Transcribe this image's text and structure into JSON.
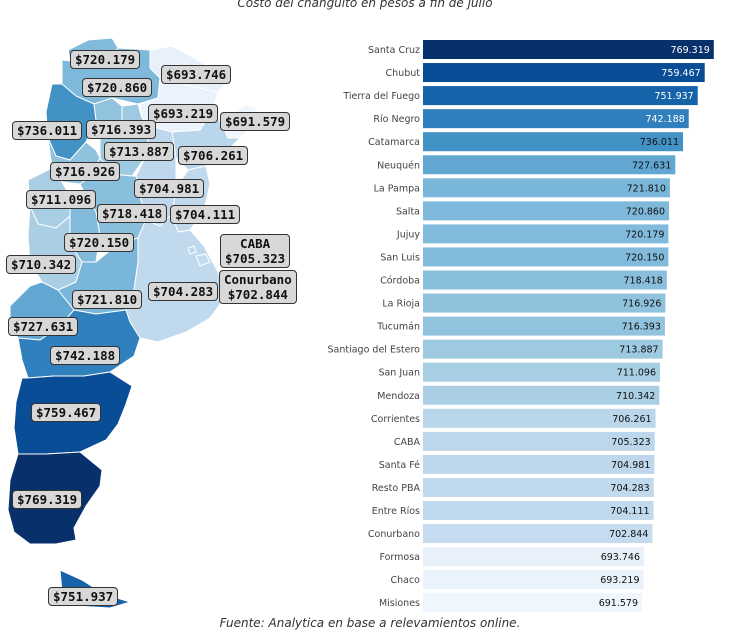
{
  "chart_data": [
    {
      "type": "map",
      "region_labels": [
        {
          "region": "Jujuy",
          "label": "$720.179"
        },
        {
          "region": "Formosa",
          "label": "$693.746"
        },
        {
          "region": "Salta",
          "label": "$720.860"
        },
        {
          "region": "Chaco",
          "label": "$693.219"
        },
        {
          "region": "Catamarca",
          "label": "$736.011"
        },
        {
          "region": "Tucumán",
          "label": "$716.393"
        },
        {
          "region": "Misiones",
          "label": "$691.579"
        },
        {
          "region": "Santiago del Estero",
          "label": "$713.887"
        },
        {
          "region": "Corrientes",
          "label": "$706.261"
        },
        {
          "region": "La Rioja",
          "label": "$716.926"
        },
        {
          "region": "Santa Fé",
          "label": "$704.981"
        },
        {
          "region": "San Juan",
          "label": "$711.096"
        },
        {
          "region": "Córdoba",
          "label": "$718.418"
        },
        {
          "region": "Entre Ríos",
          "label": "$704.111"
        },
        {
          "region": "CABA",
          "label": "CABA\n$705.323"
        },
        {
          "region": "San Luis",
          "label": "$720.150"
        },
        {
          "region": "Mendoza",
          "label": "$710.342"
        },
        {
          "region": "Conurbano",
          "label": "Conurbano\n$702.844"
        },
        {
          "region": "La Pampa",
          "label": "$721.810"
        },
        {
          "region": "Resto PBA",
          "label": "$704.283"
        },
        {
          "region": "Neuquén",
          "label": "$727.631"
        },
        {
          "region": "Río Negro",
          "label": "$742.188"
        },
        {
          "region": "Chubut",
          "label": "$759.467"
        },
        {
          "region": "Santa Cruz",
          "label": "$769.319"
        },
        {
          "region": "Tierra del Fuego",
          "label": "$751.937"
        }
      ]
    },
    {
      "type": "bar",
      "orientation": "horizontal",
      "title": "Costo del changuito en pesos a fin de julio",
      "source": "Fuente: Analytica en base a relevamientos online.",
      "categories": [
        "Santa Cruz",
        "Chubut",
        "Tierra del Fuego",
        "Río Negro",
        "Catamarca",
        "Neuquén",
        "La Pampa",
        "Salta",
        "Jujuy",
        "San Luis",
        "Córdoba",
        "La Rioja",
        "Tucumán",
        "Santiago del Estero",
        "San Juan",
        "Mendoza",
        "Corrientes",
        "CABA",
        "Santa Fé",
        "Resto PBA",
        "Entre Ríos",
        "Conurbano",
        "Formosa",
        "Chaco",
        "Misiones"
      ],
      "values": [
        769.319,
        759.467,
        751.937,
        742.188,
        736.011,
        727.631,
        721.81,
        720.86,
        720.179,
        720.15,
        718.418,
        716.926,
        716.393,
        713.887,
        711.096,
        710.342,
        706.261,
        705.323,
        704.981,
        704.283,
        704.111,
        702.844,
        693.746,
        693.219,
        691.579
      ],
      "value_labels": [
        "769.319",
        "759.467",
        "751.937",
        "742.188",
        "736.011",
        "727.631",
        "721.810",
        "720.860",
        "720.179",
        "720.150",
        "718.418",
        "716.926",
        "716.393",
        "713.887",
        "711.096",
        "710.342",
        "706.261",
        "705.323",
        "704.981",
        "704.283",
        "704.111",
        "702.844",
        "693.746",
        "693.219",
        "691.579"
      ],
      "color_scale": [
        "#f0f6fd",
        "#c6dbef",
        "#9ecae1",
        "#6baed6",
        "#4292c6",
        "#2171b5",
        "#08519c",
        "#08306b"
      ]
    }
  ]
}
